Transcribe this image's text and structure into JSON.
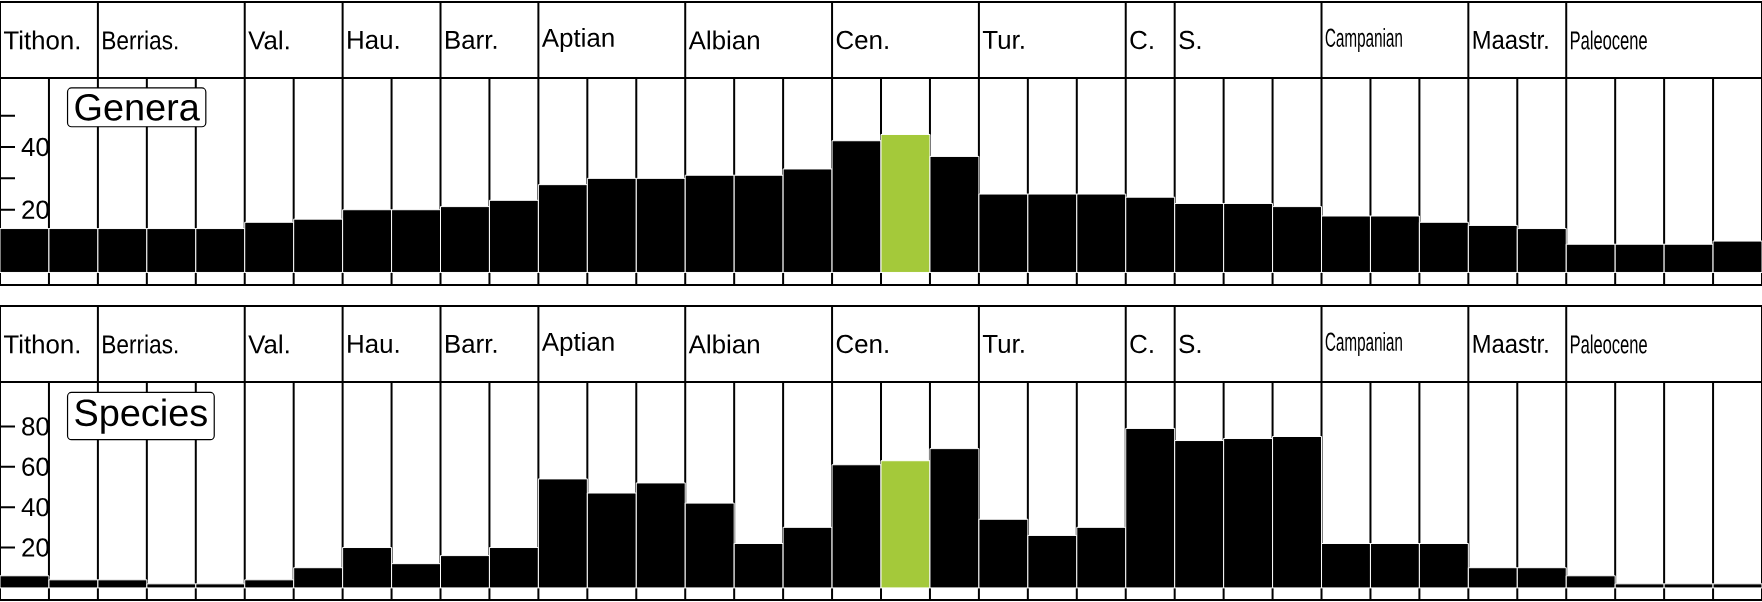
{
  "chart_data": [
    {
      "type": "bar",
      "title": "Genera",
      "categories": [
        "Tithon.",
        null,
        "Berrias.",
        null,
        null,
        "Val.",
        null,
        "Hau.",
        null,
        "Barr.",
        null,
        "Aptian",
        null,
        null,
        "Albian",
        null,
        null,
        "Cen.",
        null,
        null,
        "Tur.",
        null,
        null,
        "C.",
        "S.",
        null,
        null,
        "Campanian",
        null,
        null,
        "Maastr.",
        null,
        "Paleocene",
        null,
        null,
        null
      ],
      "values": [
        14,
        14,
        14,
        14,
        14,
        16,
        17,
        20,
        20,
        21,
        23,
        28,
        30,
        30,
        31,
        31,
        33,
        42,
        44,
        37,
        25,
        25,
        25,
        24,
        22,
        22,
        21,
        18,
        18,
        16,
        15,
        14,
        9,
        9,
        9,
        10
      ],
      "colors": [
        "#000000",
        "#000000",
        "#000000",
        "#000000",
        "#000000",
        "#000000",
        "#000000",
        "#000000",
        "#000000",
        "#000000",
        "#000000",
        "#000000",
        "#000000",
        "#000000",
        "#000000",
        "#000000",
        "#000000",
        "#000000",
        "#a4c93a",
        "#000000",
        "#000000",
        "#000000",
        "#000000",
        "#000000",
        "#000000",
        "#000000",
        "#000000",
        "#000000",
        "#000000",
        "#000000",
        "#000000",
        "#000000",
        "#000000",
        "#000000",
        "#000000",
        "#000000"
      ],
      "ylim": [
        -4,
        62
      ],
      "yticks": [
        20,
        {
          "value": 30,
          "label": null
        },
        40,
        {
          "value": 50,
          "label": null
        }
      ],
      "grid": "x"
    },
    {
      "type": "bar",
      "title": "Species",
      "categories": [
        "Tithon.",
        null,
        "Berrias.",
        null,
        null,
        "Val.",
        null,
        "Hau.",
        null,
        "Barr.",
        null,
        "Aptian",
        null,
        null,
        "Albian",
        null,
        null,
        "Cen.",
        null,
        null,
        "Tur.",
        null,
        null,
        "C.",
        "S.",
        null,
        null,
        "Campanian",
        null,
        null,
        "Maastr.",
        null,
        "Paleocene",
        null,
        null,
        null
      ],
      "values": [
        6,
        4,
        4,
        2,
        2,
        4,
        10,
        20,
        12,
        16,
        20,
        54,
        47,
        52,
        42,
        22,
        30,
        61,
        63,
        69,
        34,
        26,
        30,
        79,
        73,
        74,
        75,
        22,
        22,
        22,
        10,
        10,
        6,
        2,
        2,
        2
      ],
      "colors": [
        "#000000",
        "#000000",
        "#000000",
        "#000000",
        "#000000",
        "#000000",
        "#000000",
        "#000000",
        "#000000",
        "#000000",
        "#000000",
        "#000000",
        "#000000",
        "#000000",
        "#000000",
        "#000000",
        "#000000",
        "#000000",
        "#a4c93a",
        "#000000",
        "#000000",
        "#000000",
        "#000000",
        "#000000",
        "#000000",
        "#000000",
        "#000000",
        "#000000",
        "#000000",
        "#000000",
        "#000000",
        "#000000",
        "#000000",
        "#000000",
        "#000000",
        "#000000"
      ],
      "ylim": [
        -6,
        102
      ],
      "yticks": [
        20,
        40,
        60,
        80
      ],
      "grid": "x"
    }
  ]
}
